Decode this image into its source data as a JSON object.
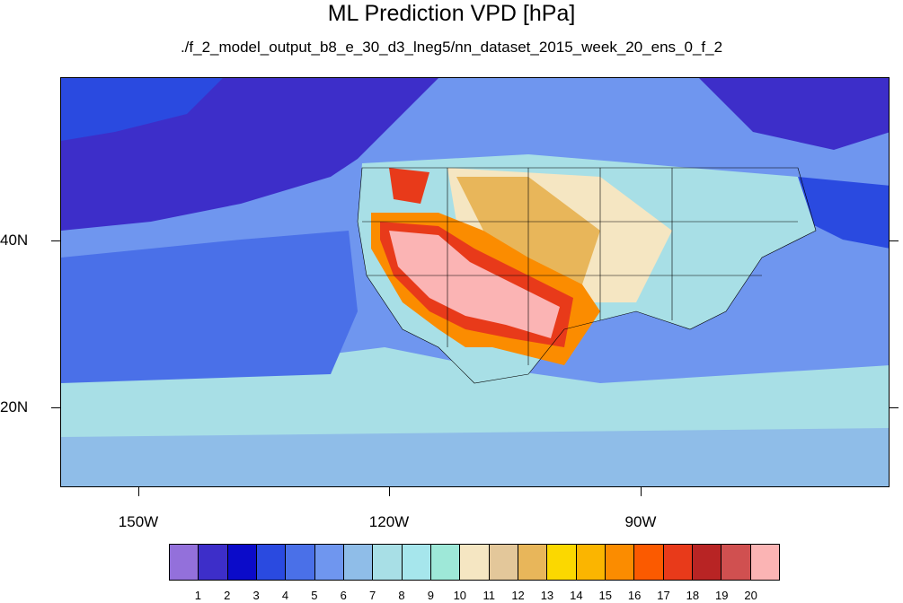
{
  "title": "ML Prediction VPD [hPa]",
  "subtitle": "./f_2_model_output_b8_e_30_d3_lneg5/nn_dataset_2015_week_20_ens_0_f_2",
  "lat_labels": [
    "40N",
    "20N"
  ],
  "lon_labels": [
    "150W",
    "120W",
    "90W"
  ],
  "colorbar": {
    "labels": [
      "1",
      "2",
      "3",
      "4",
      "5",
      "6",
      "7",
      "8",
      "9",
      "10",
      "11",
      "12",
      "13",
      "14",
      "15",
      "16",
      "17",
      "18",
      "19",
      "20"
    ],
    "colors": [
      "#9370db",
      "#3d2ec9",
      "#0b0bc9",
      "#2a4ae0",
      "#4a70e8",
      "#6f96ef",
      "#8fbde8",
      "#a8dfe6",
      "#a6e6ec",
      "#9ee8d8",
      "#f5e6c2",
      "#e3c79a",
      "#e8b65a",
      "#fbd800",
      "#fbb500",
      "#fb8c00",
      "#fb5a00",
      "#e83a1a",
      "#b82424",
      "#d05050",
      "#fbb4b4"
    ]
  },
  "legend_icons": [
    "map-land-outline-icon"
  ]
}
